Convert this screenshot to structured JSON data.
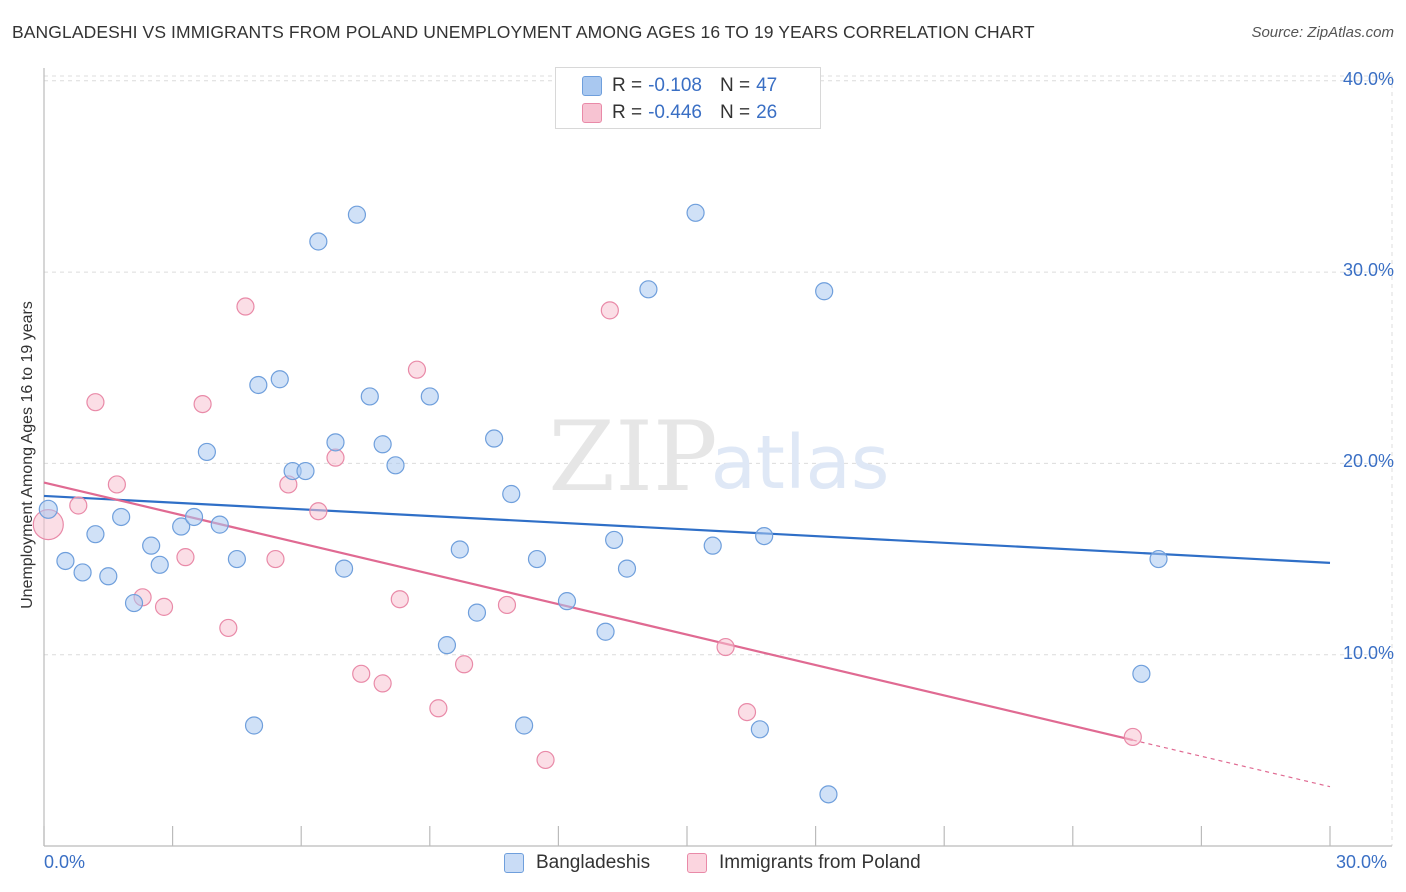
{
  "header": {
    "title": "BANGLADESHI VS IMMIGRANTS FROM POLAND UNEMPLOYMENT AMONG AGES 16 TO 19 YEARS CORRELATION CHART",
    "source": "Source: ZipAtlas.com"
  },
  "watermark": {
    "zip": "ZIP",
    "atlas": "atlas"
  },
  "legend_top": {
    "rows": [
      {
        "label": "R =",
        "r": "-0.108",
        "n_label": "N =",
        "n": "47",
        "color": "#a9c8f0",
        "border": "#6f9fdc"
      },
      {
        "label": "R =",
        "r": "-0.446",
        "n_label": "N =",
        "n": "26",
        "color": "#f7c3d2",
        "border": "#e98aa8"
      }
    ]
  },
  "legend_bottom": {
    "items": [
      {
        "label": "Bangladeshis",
        "color": "#c9dcf6",
        "border": "#6f9fdc"
      },
      {
        "label": "Immigrants from Poland",
        "color": "#fbd5df",
        "border": "#e98aa8"
      }
    ]
  },
  "chart_data": {
    "type": "scatter",
    "title": "BANGLADESHI VS IMMIGRANTS FROM POLAND UNEMPLOYMENT AMONG AGES 16 TO 19 YEARS CORRELATION CHART",
    "xlabel": "",
    "ylabel": "Unemployment Among Ages 16 to 19 years",
    "xlim": [
      0,
      30
    ],
    "ylim": [
      0,
      40.5
    ],
    "x_tick_labels": [
      "0.0%",
      "30.0%"
    ],
    "y_ticks": [
      10,
      20,
      30,
      40
    ],
    "y_tick_labels": [
      "10.0%",
      "20.0%",
      "30.0%",
      "40.0%"
    ],
    "grid": "horizontal dashed",
    "legend_position": "top-center",
    "series": [
      {
        "name": "Bangladeshis",
        "color": "#a9c8f0",
        "stroke": "#6f9fdc",
        "line_color": "#2f6fc7",
        "trend": {
          "x": [
            0,
            30
          ],
          "y": [
            18.3,
            14.8
          ]
        },
        "points": [
          [
            0.1,
            17.6
          ],
          [
            0.5,
            14.9
          ],
          [
            0.9,
            14.3
          ],
          [
            1.2,
            16.3
          ],
          [
            1.5,
            14.1
          ],
          [
            1.8,
            17.2
          ],
          [
            2.1,
            12.7
          ],
          [
            2.5,
            15.7
          ],
          [
            2.7,
            14.7
          ],
          [
            3.2,
            16.7
          ],
          [
            3.5,
            17.2
          ],
          [
            3.8,
            20.6
          ],
          [
            4.1,
            16.8
          ],
          [
            4.5,
            15.0
          ],
          [
            4.9,
            6.3
          ],
          [
            5.0,
            24.1
          ],
          [
            5.5,
            24.4
          ],
          [
            5.8,
            19.6
          ],
          [
            6.1,
            19.6
          ],
          [
            6.4,
            31.6
          ],
          [
            6.8,
            21.1
          ],
          [
            7.0,
            14.5
          ],
          [
            7.3,
            33.0
          ],
          [
            7.6,
            23.5
          ],
          [
            7.9,
            21.0
          ],
          [
            8.2,
            19.9
          ],
          [
            9.0,
            23.5
          ],
          [
            9.4,
            10.5
          ],
          [
            9.7,
            15.5
          ],
          [
            10.1,
            12.2
          ],
          [
            10.5,
            21.3
          ],
          [
            10.9,
            18.4
          ],
          [
            11.2,
            6.3
          ],
          [
            11.5,
            15.0
          ],
          [
            12.2,
            12.8
          ],
          [
            13.1,
            11.2
          ],
          [
            13.3,
            16.0
          ],
          [
            13.6,
            14.5
          ],
          [
            14.1,
            29.1
          ],
          [
            15.2,
            33.1
          ],
          [
            15.6,
            15.7
          ],
          [
            16.7,
            6.1
          ],
          [
            16.8,
            16.2
          ],
          [
            18.2,
            29.0
          ],
          [
            18.3,
            2.7
          ],
          [
            25.6,
            9.0
          ],
          [
            26.0,
            15.0
          ]
        ]
      },
      {
        "name": "Immigrants from Poland",
        "color": "#f7c3d2",
        "stroke": "#e98aa8",
        "line_color": "#e06a92",
        "trend": {
          "x": [
            0,
            30
          ],
          "y": [
            19.0,
            3.1
          ],
          "solid_until_x": 25.4
        },
        "points": [
          [
            0.1,
            16.8
          ],
          [
            0.8,
            17.8
          ],
          [
            1.2,
            23.2
          ],
          [
            1.7,
            18.9
          ],
          [
            2.3,
            13.0
          ],
          [
            2.8,
            12.5
          ],
          [
            3.3,
            15.1
          ],
          [
            3.7,
            23.1
          ],
          [
            4.3,
            11.4
          ],
          [
            4.7,
            28.2
          ],
          [
            5.4,
            15.0
          ],
          [
            5.7,
            18.9
          ],
          [
            6.4,
            17.5
          ],
          [
            6.8,
            20.3
          ],
          [
            7.4,
            9.0
          ],
          [
            7.9,
            8.5
          ],
          [
            8.3,
            12.9
          ],
          [
            8.7,
            24.9
          ],
          [
            9.2,
            7.2
          ],
          [
            9.8,
            9.5
          ],
          [
            10.8,
            12.6
          ],
          [
            11.7,
            4.5
          ],
          [
            13.2,
            28.0
          ],
          [
            15.9,
            10.4
          ],
          [
            16.4,
            7.0
          ],
          [
            25.4,
            5.7
          ]
        ]
      }
    ]
  }
}
